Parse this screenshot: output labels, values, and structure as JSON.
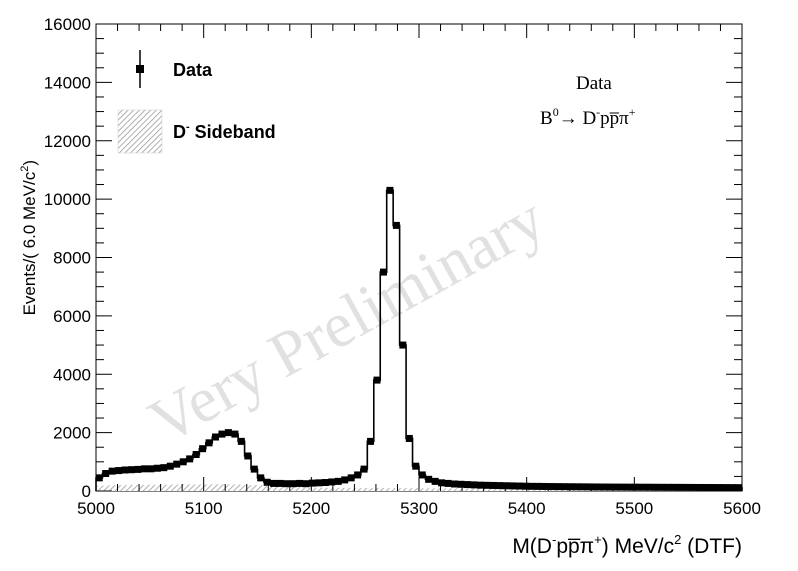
{
  "chart_data": {
    "type": "histogram",
    "xlabel": "M(D",
    "xlabel_sup": "-",
    "xlabel_mid": "pp̅π",
    "xlabel_sup2": "+",
    "xlabel_end": ") MeV/c",
    "xlabel_sup3": "2",
    "xlabel_tail": " (DTF)",
    "ylabel": "Events/( 6.0 MeV/c",
    "ylabel_sup": "2",
    "ylabel_end": ")",
    "xlim": [
      5000,
      5600
    ],
    "ylim": [
      0,
      16000
    ],
    "bin_width": 6,
    "x_ticks": [
      "5000",
      "5100",
      "5200",
      "5300",
      "5400",
      "5500",
      "5600"
    ],
    "y_ticks": [
      "0",
      "2000",
      "4000",
      "6000",
      "8000",
      "10000",
      "12000",
      "14000",
      "16000"
    ],
    "legend": {
      "position": "top-left",
      "data_label": "Data",
      "sideband_label_main": "D",
      "sideband_label_sup": "-",
      "sideband_label_end": " Sideband"
    },
    "annotation": {
      "line1": "Data",
      "decay_B": "B",
      "decay_B_sup": "0",
      "decay_arrow": "→ D",
      "decay_D_sup": "-",
      "decay_rest": "pp̅π",
      "decay_pi_sup": "+"
    },
    "watermark": "Very Preliminary",
    "series": [
      {
        "name": "Data",
        "style": "markers-with-step",
        "color": "#000000",
        "bin_centers": [
          5003,
          5009,
          5015,
          5021,
          5027,
          5033,
          5039,
          5045,
          5051,
          5057,
          5063,
          5069,
          5075,
          5081,
          5087,
          5093,
          5099,
          5105,
          5111,
          5117,
          5123,
          5129,
          5135,
          5141,
          5147,
          5153,
          5159,
          5165,
          5171,
          5177,
          5183,
          5189,
          5195,
          5201,
          5207,
          5213,
          5219,
          5225,
          5231,
          5237,
          5243,
          5249,
          5255,
          5261,
          5267,
          5273,
          5279,
          5285,
          5291,
          5297,
          5303,
          5309,
          5315,
          5321,
          5327,
          5333,
          5339,
          5345,
          5351,
          5357,
          5363,
          5369,
          5375,
          5381,
          5387,
          5393,
          5399,
          5405,
          5411,
          5417,
          5423,
          5429,
          5435,
          5441,
          5447,
          5453,
          5459,
          5465,
          5471,
          5477,
          5483,
          5489,
          5495,
          5501,
          5507,
          5513,
          5519,
          5525,
          5531,
          5537,
          5543,
          5549,
          5555,
          5561,
          5567,
          5573,
          5579,
          5585,
          5591,
          5597
        ],
        "values": [
          450,
          600,
          680,
          700,
          720,
          730,
          740,
          760,
          760,
          780,
          800,
          850,
          920,
          1000,
          1100,
          1250,
          1450,
          1650,
          1850,
          1950,
          2000,
          1950,
          1700,
          1200,
          750,
          450,
          300,
          260,
          260,
          250,
          250,
          260,
          250,
          270,
          280,
          290,
          310,
          330,
          380,
          450,
          550,
          750,
          1700,
          3800,
          7500,
          10300,
          9100,
          5000,
          1800,
          850,
          550,
          400,
          330,
          280,
          260,
          240,
          230,
          220,
          210,
          200,
          195,
          190,
          185,
          180,
          175,
          170,
          165,
          160,
          158,
          155,
          152,
          150,
          148,
          146,
          144,
          142,
          140,
          138,
          136,
          135,
          134,
          133,
          132,
          131,
          130,
          129,
          128,
          127,
          126,
          125,
          124,
          123,
          122,
          121,
          120,
          119,
          118,
          117,
          116,
          115
        ]
      },
      {
        "name": "D- Sideband",
        "style": "hatched-fill",
        "color": "#999999",
        "bin_centers": [
          5003,
          5021,
          5039,
          5057,
          5075,
          5093,
          5111,
          5129,
          5147,
          5165,
          5183,
          5201,
          5219,
          5237,
          5255,
          5273,
          5291,
          5309,
          5327,
          5345,
          5363,
          5381,
          5399,
          5417,
          5435,
          5453,
          5471,
          5489,
          5507,
          5525,
          5543,
          5561,
          5579,
          5597
        ],
        "values": [
          180,
          200,
          210,
          215,
          220,
          225,
          230,
          225,
          200,
          160,
          130,
          115,
          110,
          105,
          100,
          100,
          98,
          95,
          92,
          90,
          88,
          86,
          85,
          84,
          83,
          82,
          81,
          80,
          80,
          79,
          78,
          78,
          77,
          77
        ]
      }
    ]
  }
}
